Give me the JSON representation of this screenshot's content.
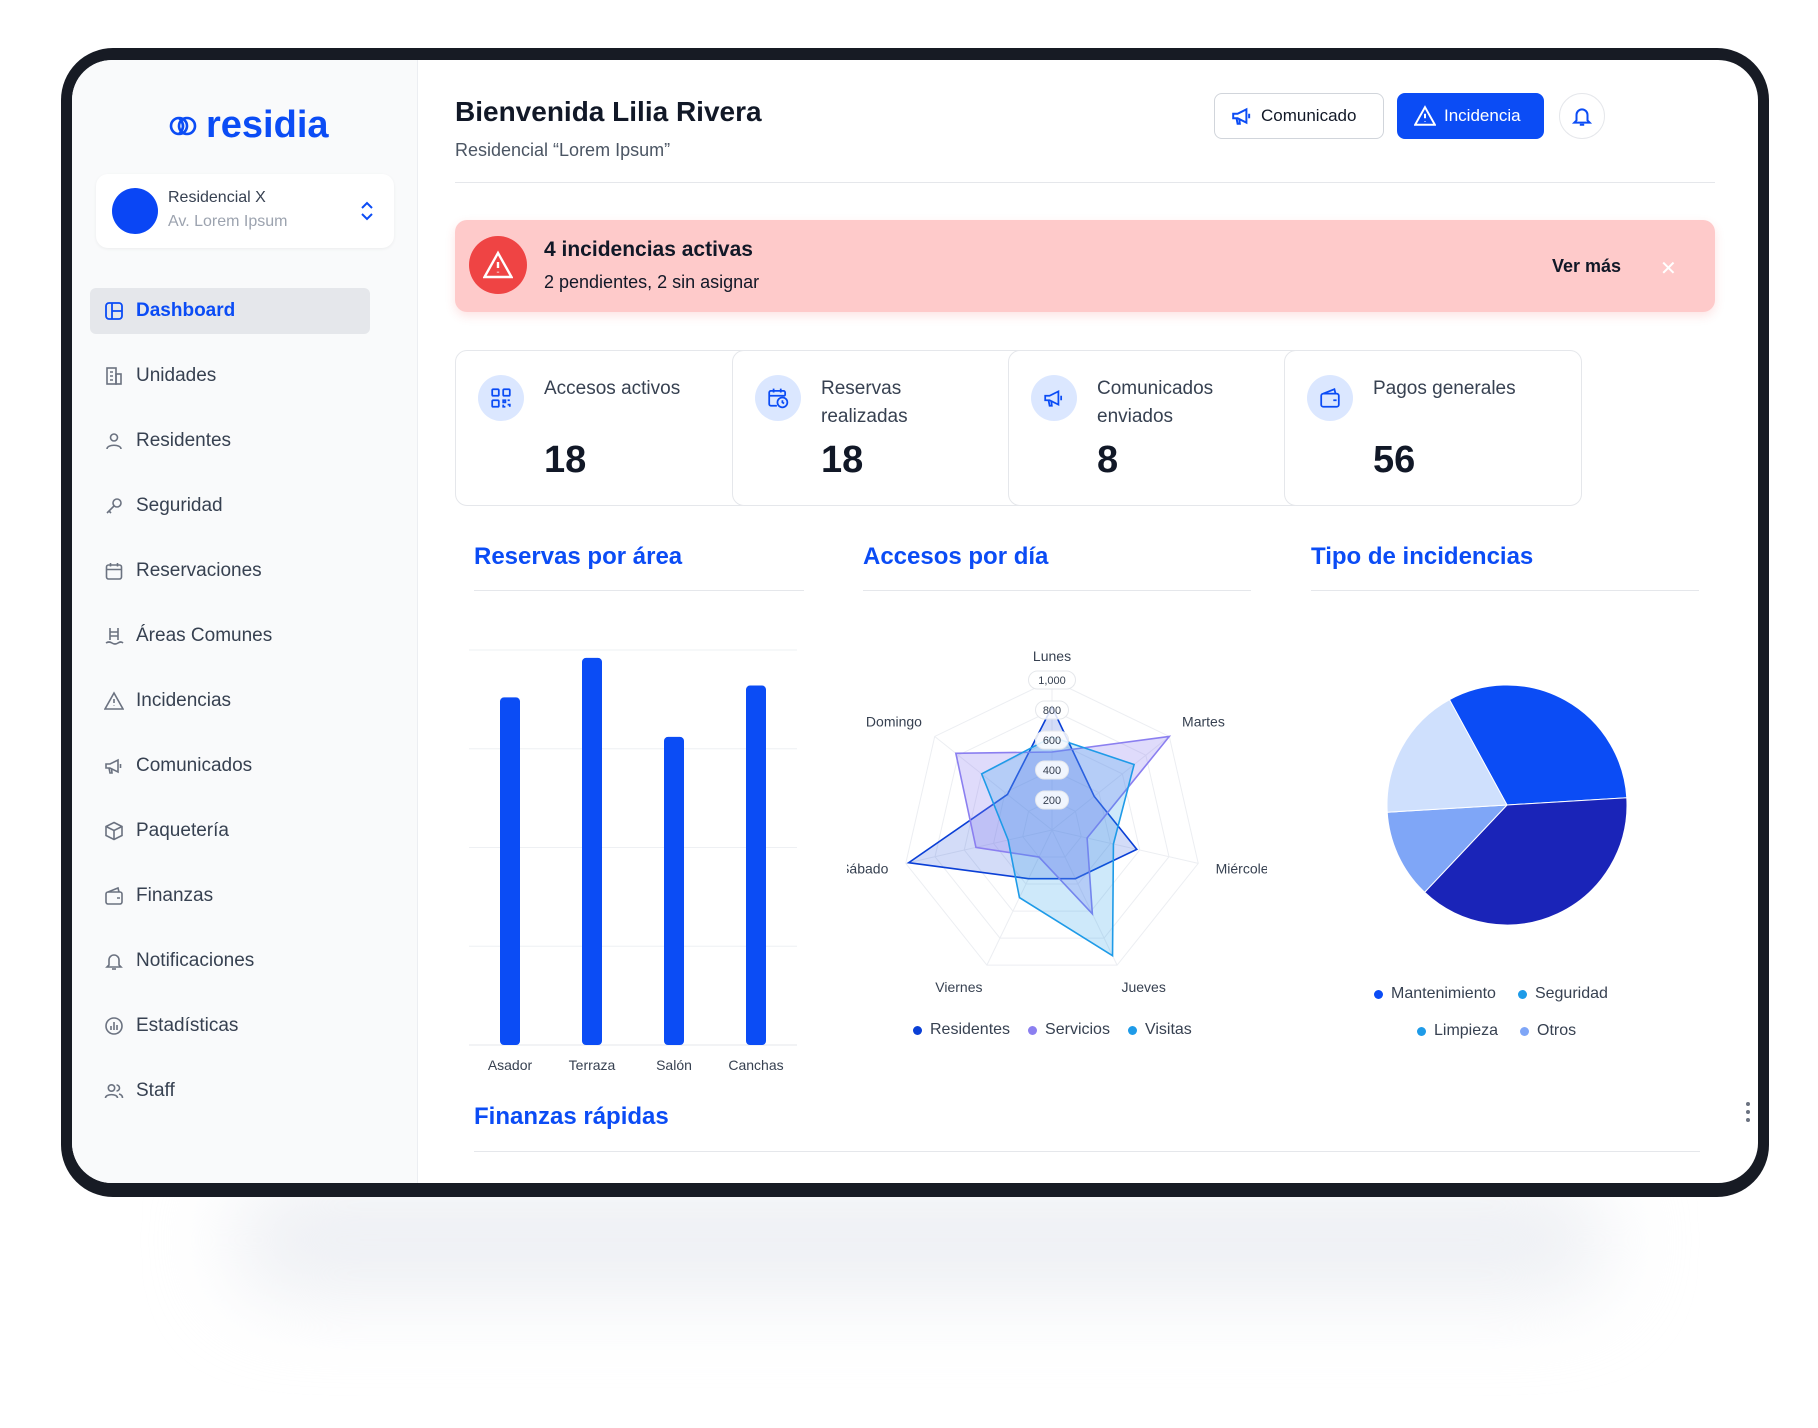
{
  "app": {
    "brand": "residia"
  },
  "residence": {
    "name": "Residencial X",
    "address": "Av. Lorem Ipsum"
  },
  "sidebar": {
    "items": [
      {
        "label": "Dashboard",
        "icon": "layout-icon",
        "active": true
      },
      {
        "label": "Unidades",
        "icon": "building-icon"
      },
      {
        "label": "Residentes",
        "icon": "user-icon"
      },
      {
        "label": "Seguridad",
        "icon": "key-icon"
      },
      {
        "label": "Reservaciones",
        "icon": "calendar-icon"
      },
      {
        "label": "Áreas Comunes",
        "icon": "pool-icon"
      },
      {
        "label": "Incidencias",
        "icon": "warning-icon"
      },
      {
        "label": "Comunicados",
        "icon": "megaphone-icon"
      },
      {
        "label": "Paquetería",
        "icon": "package-icon"
      },
      {
        "label": "Finanzas",
        "icon": "wallet-icon"
      },
      {
        "label": "Notificaciones",
        "icon": "bell-icon"
      },
      {
        "label": "Estadísticas",
        "icon": "chart-icon"
      },
      {
        "label": "Staff",
        "icon": "users-icon"
      }
    ]
  },
  "header": {
    "welcome": "Bienvenida Lilia Rivera",
    "subtitle": "Residencial “Lorem Ipsum”",
    "btn_comunicado": "Comunicado",
    "btn_incidencia": "Incidencia"
  },
  "alert": {
    "title": "4 incidencias activas",
    "subtitle": "2 pendientes, 2 sin asignar",
    "action": "Ver más"
  },
  "stats": [
    {
      "label": "Accesos activos",
      "value": "18",
      "icon": "qr-icon"
    },
    {
      "label": "Reservas realizadas",
      "value": "18",
      "icon": "calendar-clock-icon"
    },
    {
      "label": "Comunicados enviados",
      "value": "8",
      "icon": "megaphone-icon"
    },
    {
      "label": "Pagos generales",
      "value": "56",
      "icon": "wallet-icon"
    }
  ],
  "sections": {
    "reservas": "Reservas por área",
    "accesos": "Accesos por día",
    "incidencias": "Tipo de incidencias",
    "finanzas": "Finanzas rápidas"
  },
  "colors": {
    "primary": "#0b4cf5",
    "alert_bg": "#fecaca",
    "alert_icon": "#ef4444",
    "series_residentes": "#0a3fd6",
    "series_servicios": "#8b7ff0",
    "series_visitas": "#1e9be8"
  },
  "chart_data": [
    {
      "type": "bar",
      "title": "Reservas por área",
      "categories": [
        "Asador",
        "Terraza",
        "Salón",
        "Canchas"
      ],
      "values": [
        88,
        98,
        78,
        91
      ],
      "ylim": [
        0,
        100
      ],
      "grid": true
    },
    {
      "type": "radar",
      "title": "Accesos por día",
      "categories": [
        "Lunes",
        "Martes",
        "Miércoles",
        "Jueves",
        "Viernes",
        "Sábado",
        "Domingo"
      ],
      "ticks": [
        "1,000",
        "800",
        "600",
        "400",
        "200"
      ],
      "rmax": 1000,
      "series": [
        {
          "name": "Residentes",
          "values": [
            820,
            360,
            580,
            360,
            360,
            980,
            380
          ]
        },
        {
          "name": "Servicios",
          "values": [
            520,
            1000,
            240,
            620,
            200,
            520,
            820
          ]
        },
        {
          "name": "Visitas",
          "values": [
            620,
            700,
            420,
            930,
            500,
            300,
            600
          ]
        }
      ],
      "legend": "bottom"
    },
    {
      "type": "pie",
      "title": "Tipo de incidencias",
      "labels": [
        "Mantenimiento",
        "Seguridad",
        "Limpieza",
        "Otros"
      ],
      "values": [
        32,
        38,
        12,
        18
      ],
      "legend": "bottom"
    }
  ]
}
